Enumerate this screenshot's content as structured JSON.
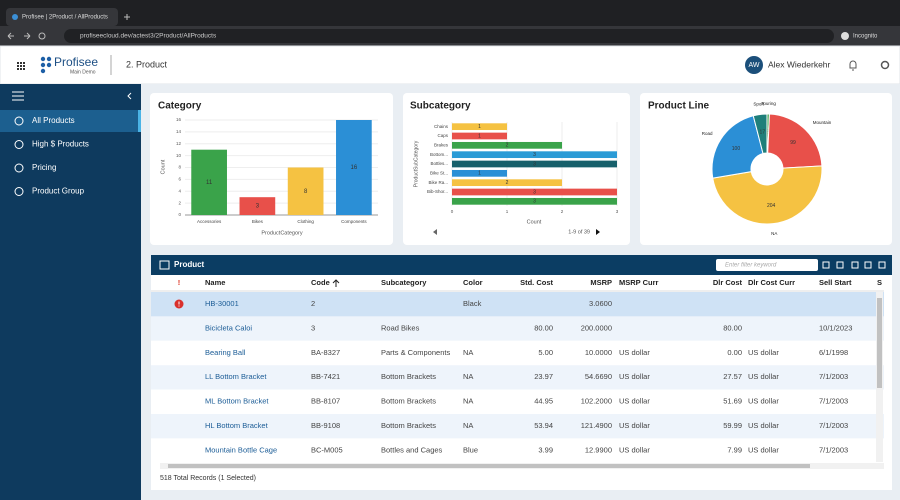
{
  "browser": {
    "tab": "Profisee | 2Product / AllProducts",
    "url": "profiseecloud.dev/actest3/2Product/AllProducts",
    "mode": "Incognito"
  },
  "header": {
    "brand": "Profisee",
    "subbrand": "Main Demo",
    "page": "2. Product",
    "initials": "AW",
    "user": "Alex Wiederkehr"
  },
  "sidebar": {
    "items": [
      "All Products",
      "High $ Products",
      "Pricing",
      "Product Group"
    ]
  },
  "chart_data": [
    {
      "type": "bar",
      "title": "Category",
      "categories": [
        "Accessories",
        "Bikes",
        "Clothing",
        "Components"
      ],
      "values": [
        11,
        3,
        8,
        16
      ],
      "colors": [
        "#3aa34a",
        "#e8504a",
        "#f5c242",
        "#2b8fd6"
      ],
      "ylim": [
        0,
        16
      ],
      "yticks": [
        0,
        2,
        4,
        6,
        8,
        10,
        12,
        14,
        16
      ],
      "x_label": "ProductCategory",
      "y_label": "Count",
      "grid": true
    },
    {
      "type": "hbar",
      "title": "Subcategory",
      "categories": [
        "Chains",
        "Caps",
        "Brakes",
        "Bottom...",
        "Bottles...",
        "Bike St...",
        "Bike Ra...",
        "Bib-Shor...",
        null
      ],
      "values": [
        1,
        1,
        2,
        3,
        3,
        1,
        2,
        3,
        3
      ],
      "colors": [
        "#f5c242",
        "#e8504a",
        "#3aa34a",
        "#2b9bd6",
        "#17606b",
        "#2b8fd6",
        "#f5c242",
        "#e8504a",
        "#3aa34a"
      ],
      "xlim": [
        0,
        3
      ],
      "xticks": [
        0,
        1,
        2,
        3
      ],
      "x_label": "Count",
      "y_label": "ProductSubCategory",
      "pagination": "1-9 of 39",
      "grid": true
    },
    {
      "type": "pie",
      "title": "Product Line",
      "categories": [
        "Touring",
        "Mountain",
        "NA",
        "Road",
        "Sport"
      ],
      "values": [
        3,
        99,
        204,
        100,
        17
      ],
      "colors": [
        "#3aa34a",
        "#e8504a",
        "#f5c242",
        "#2b8fd6",
        "#1f7f7a"
      ]
    }
  ],
  "grid": {
    "title": "Product",
    "filter_placeholder": "Enter filter keyword",
    "columns": [
      "!",
      "Name",
      "Code",
      "Subcategory",
      "Color",
      "Std. Cost",
      "MSRP",
      "MSRP Curr",
      "Dlr Cost",
      "Dlr Cost Curr",
      "Sell Start",
      "S"
    ],
    "rows": [
      [
        null,
        "HB-30001",
        "2",
        null,
        "Black",
        null,
        "3.0600",
        null,
        null,
        null,
        null,
        null
      ],
      [
        null,
        "Bicicleta Caloi",
        "3",
        "Road Bikes",
        null,
        "80.00",
        "200.0000",
        null,
        "80.00",
        null,
        "10/1/2023",
        null
      ],
      [
        null,
        "Bearing Ball",
        "BA-8327",
        "Parts & Components",
        "NA",
        "5.00",
        "10.0000",
        "US dollar",
        "0.00",
        "US dollar",
        "6/1/1998",
        null
      ],
      [
        null,
        "LL Bottom Bracket",
        "BB-7421",
        "Bottom Brackets",
        "NA",
        "23.97",
        "54.6690",
        "US dollar",
        "27.57",
        "US dollar",
        "7/1/2003",
        null
      ],
      [
        null,
        "ML Bottom Bracket",
        "BB-8107",
        "Bottom Brackets",
        "NA",
        "44.95",
        "102.2000",
        "US dollar",
        "51.69",
        "US dollar",
        "7/1/2003",
        null
      ],
      [
        null,
        "HL Bottom Bracket",
        "BB-9108",
        "Bottom Brackets",
        "NA",
        "53.94",
        "121.4900",
        "US dollar",
        "59.99",
        "US dollar",
        "7/1/2003",
        null
      ],
      [
        null,
        "Mountain Bottle Cage",
        "BC-M005",
        "Bottles and Cages",
        "Blue",
        "3.99",
        "12.9900",
        "US dollar",
        "7.99",
        "US dollar",
        "7/1/2003",
        null
      ]
    ],
    "footer": "518 Total Records (1 Selected)"
  }
}
